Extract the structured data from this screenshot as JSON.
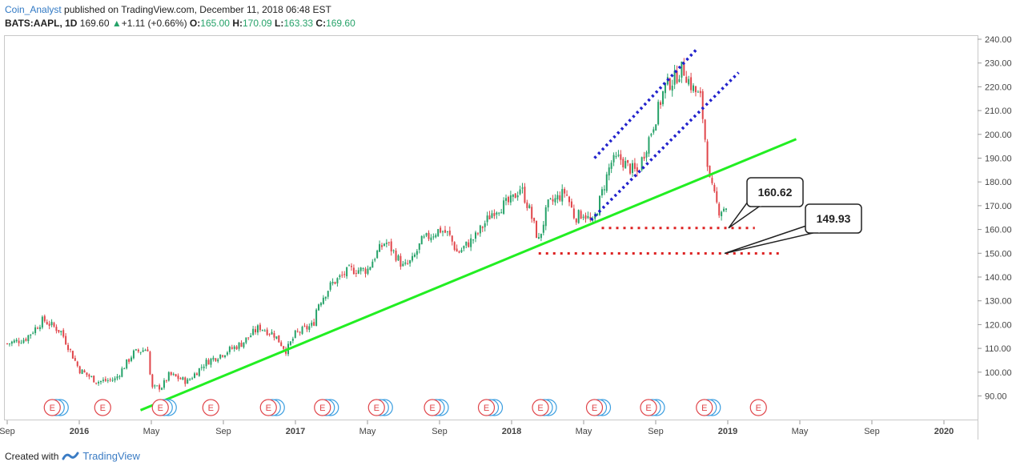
{
  "header": {
    "author": "Coin_Analyst",
    "published_text": " published on TradingView.com, December 11, 2018 06:48 EST",
    "symbol": "BATS:AAPL, 1D",
    "last": "169.60",
    "change": "+1.11 (+0.66%)",
    "o_label": "O:",
    "o_value": "165.00",
    "h_label": "H:",
    "h_value": "170.09",
    "l_label": "L:",
    "l_value": "163.33",
    "c_label": "C:",
    "c_value": "169.60"
  },
  "footer": {
    "created_with": "Created with",
    "brand": "TradingView"
  },
  "colors": {
    "up": "#26a269",
    "down": "#e0454a",
    "trend": "#22ee22",
    "channel": "#2222cc",
    "support": "#dd2222",
    "earnings": "#e0454a",
    "dividend": "#3b9ee0"
  },
  "chart_data": {
    "type": "candlestick",
    "symbol": "AAPL",
    "timeframe": "1D",
    "ylim": [
      82,
      242
    ],
    "y_ticks": [
      "240.00",
      "230.00",
      "220.00",
      "210.00",
      "200.00",
      "190.00",
      "180.00",
      "170.00",
      "160.00",
      "150.00",
      "140.00",
      "130.00",
      "120.00",
      "110.00",
      "100.00",
      "90.00"
    ],
    "x_ticks": [
      "Sep",
      "2016",
      "May",
      "Sep",
      "2017",
      "May",
      "Sep",
      "2018",
      "May",
      "Sep",
      "2019",
      "May",
      "Sep",
      "2020"
    ],
    "bold_x_ticks": [
      "2016",
      "2017",
      "2018",
      "2019",
      "2020"
    ],
    "x_tick_months": [
      0,
      4,
      8,
      12,
      16,
      20,
      24,
      28,
      32,
      36,
      40,
      44,
      48,
      52
    ],
    "xlim_months": [
      0,
      53.5
    ],
    "price_path": [
      [
        0,
        112
      ],
      [
        1,
        114
      ],
      [
        2,
        122
      ],
      [
        3,
        117
      ],
      [
        4,
        101
      ],
      [
        5,
        96
      ],
      [
        6,
        97
      ],
      [
        7,
        108
      ],
      [
        7.8,
        110
      ],
      [
        8,
        93
      ],
      [
        8.6,
        94
      ],
      [
        9,
        99
      ],
      [
        10,
        96
      ],
      [
        11,
        104
      ],
      [
        12,
        108
      ],
      [
        13,
        112
      ],
      [
        14,
        119
      ],
      [
        14.8,
        116
      ],
      [
        15.5,
        109
      ],
      [
        16,
        116
      ],
      [
        17,
        120
      ],
      [
        17.2,
        128
      ],
      [
        18,
        137
      ],
      [
        19,
        143
      ],
      [
        20,
        143
      ],
      [
        20.5,
        150
      ],
      [
        21,
        155
      ],
      [
        21.5,
        150
      ],
      [
        22,
        144
      ],
      [
        22.5,
        147
      ],
      [
        23,
        155
      ],
      [
        24,
        160
      ],
      [
        24.5,
        158
      ],
      [
        25,
        150
      ],
      [
        26,
        157
      ],
      [
        27,
        168
      ],
      [
        28,
        172
      ],
      [
        28.5,
        178
      ],
      [
        29,
        168
      ],
      [
        29.5,
        155
      ],
      [
        30,
        170
      ],
      [
        31,
        176
      ],
      [
        31.5,
        165
      ],
      [
        32,
        167
      ],
      [
        32.5,
        162
      ],
      [
        33,
        175
      ],
      [
        33.5,
        188
      ],
      [
        34,
        190
      ],
      [
        34.5,
        186
      ],
      [
        35,
        184
      ],
      [
        36,
        207
      ],
      [
        36.5,
        220
      ],
      [
        37,
        223
      ],
      [
        37.5,
        228
      ],
      [
        38,
        220
      ],
      [
        38.5,
        215
      ],
      [
        39,
        180
      ],
      [
        39.5,
        168
      ],
      [
        40,
        170
      ]
    ],
    "trend_lines": [
      {
        "name": "ascending-support",
        "color": "green",
        "from": [
          7.4,
          84
        ],
        "to": [
          43.8,
          198
        ]
      },
      {
        "name": "channel-upper",
        "color": "blue",
        "from": [
          32.6,
          190
        ],
        "to": [
          38.3,
          236
        ]
      },
      {
        "name": "channel-lower",
        "color": "blue",
        "from": [
          32.4,
          164
        ],
        "to": [
          40.6,
          226
        ]
      }
    ],
    "support_levels": [
      {
        "price": 160.62,
        "label": "160.62",
        "from_month": 33,
        "to_month": 41.5
      },
      {
        "price": 149.93,
        "label": "149.93",
        "from_month": 29.5,
        "to_month": 43.1
      }
    ],
    "earnings_markers": [
      {
        "month": 2.5,
        "dividend": true
      },
      {
        "month": 5.3,
        "dividend": false
      },
      {
        "month": 8.5,
        "dividend": true
      },
      {
        "month": 11.3,
        "dividend": false
      },
      {
        "month": 14.5,
        "dividend": true
      },
      {
        "month": 17.5,
        "dividend": true
      },
      {
        "month": 20.5,
        "dividend": true
      },
      {
        "month": 23.6,
        "dividend": true
      },
      {
        "month": 26.6,
        "dividend": true
      },
      {
        "month": 29.6,
        "dividend": true
      },
      {
        "month": 32.6,
        "dividend": true
      },
      {
        "month": 35.6,
        "dividend": true
      },
      {
        "month": 38.7,
        "dividend": true
      },
      {
        "month": 41.7,
        "dividend": false
      }
    ],
    "earnings_label": "E"
  }
}
